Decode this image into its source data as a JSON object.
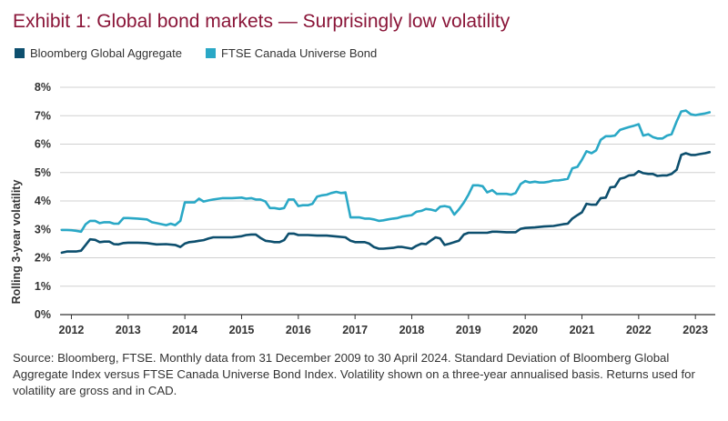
{
  "title": "Exhibit 1: Global bond markets — Surprisingly low volatility",
  "source": "Source: Bloomberg, FTSE. Monthly data from 31 December 2009 to 30 April 2024. Standard Deviation of Bloomberg Global Aggregate Index versus FTSE Canada Universe Bond Index. Volatility shown on a three-year annualised basis. Returns used for volatility are gross and in CAD.",
  "chart_data": {
    "type": "line",
    "title": "",
    "xlabel": "",
    "ylabel": "Rolling 3-year volatility",
    "x_ticks": [
      "2012",
      "2013",
      "2014",
      "2015",
      "2016",
      "2017",
      "2018",
      "2019",
      "2020",
      "2021",
      "2022",
      "2023"
    ],
    "y_ticks": [
      "0%",
      "1%",
      "2%",
      "3%",
      "4%",
      "5%",
      "6%",
      "7%",
      "8%"
    ],
    "xlim": [
      2011.8,
      2023.35
    ],
    "ylim": [
      0,
      8
    ],
    "grid": "horizontal",
    "legend_position": "top-left",
    "series": [
      {
        "name": "Bloomberg Global Aggregate",
        "color": "#0d4f6e",
        "points": [
          [
            2011.83,
            2.18
          ],
          [
            2011.92,
            2.22
          ],
          [
            2012.0,
            2.22
          ],
          [
            2012.08,
            2.22
          ],
          [
            2012.17,
            2.25
          ],
          [
            2012.25,
            2.45
          ],
          [
            2012.33,
            2.65
          ],
          [
            2012.42,
            2.63
          ],
          [
            2012.5,
            2.55
          ],
          [
            2012.58,
            2.57
          ],
          [
            2012.67,
            2.57
          ],
          [
            2012.75,
            2.48
          ],
          [
            2012.83,
            2.47
          ],
          [
            2012.92,
            2.52
          ],
          [
            2013.0,
            2.53
          ],
          [
            2013.17,
            2.53
          ],
          [
            2013.33,
            2.52
          ],
          [
            2013.5,
            2.47
          ],
          [
            2013.67,
            2.48
          ],
          [
            2013.83,
            2.45
          ],
          [
            2013.92,
            2.38
          ],
          [
            2014.0,
            2.5
          ],
          [
            2014.08,
            2.55
          ],
          [
            2014.17,
            2.57
          ],
          [
            2014.25,
            2.6
          ],
          [
            2014.33,
            2.62
          ],
          [
            2014.42,
            2.68
          ],
          [
            2014.5,
            2.72
          ],
          [
            2014.67,
            2.72
          ],
          [
            2014.83,
            2.72
          ],
          [
            2015.0,
            2.76
          ],
          [
            2015.08,
            2.8
          ],
          [
            2015.17,
            2.82
          ],
          [
            2015.25,
            2.82
          ],
          [
            2015.33,
            2.7
          ],
          [
            2015.42,
            2.6
          ],
          [
            2015.5,
            2.58
          ],
          [
            2015.58,
            2.55
          ],
          [
            2015.67,
            2.55
          ],
          [
            2015.75,
            2.62
          ],
          [
            2015.83,
            2.85
          ],
          [
            2015.92,
            2.85
          ],
          [
            2016.0,
            2.8
          ],
          [
            2016.17,
            2.8
          ],
          [
            2016.33,
            2.78
          ],
          [
            2016.5,
            2.78
          ],
          [
            2016.67,
            2.75
          ],
          [
            2016.83,
            2.72
          ],
          [
            2016.92,
            2.6
          ],
          [
            2017.0,
            2.55
          ],
          [
            2017.17,
            2.55
          ],
          [
            2017.25,
            2.5
          ],
          [
            2017.33,
            2.38
          ],
          [
            2017.42,
            2.32
          ],
          [
            2017.5,
            2.32
          ],
          [
            2017.67,
            2.35
          ],
          [
            2017.75,
            2.38
          ],
          [
            2017.83,
            2.38
          ],
          [
            2018.0,
            2.32
          ],
          [
            2018.08,
            2.42
          ],
          [
            2018.17,
            2.5
          ],
          [
            2018.25,
            2.48
          ],
          [
            2018.33,
            2.6
          ],
          [
            2018.42,
            2.72
          ],
          [
            2018.5,
            2.68
          ],
          [
            2018.58,
            2.45
          ],
          [
            2018.67,
            2.5
          ],
          [
            2018.75,
            2.55
          ],
          [
            2018.83,
            2.6
          ],
          [
            2018.92,
            2.82
          ],
          [
            2019.0,
            2.88
          ],
          [
            2019.17,
            2.88
          ],
          [
            2019.33,
            2.88
          ],
          [
            2019.42,
            2.92
          ],
          [
            2019.5,
            2.92
          ],
          [
            2019.67,
            2.9
          ],
          [
            2019.83,
            2.9
          ],
          [
            2019.92,
            3.02
          ],
          [
            2020.0,
            3.05
          ],
          [
            2020.17,
            3.07
          ],
          [
            2020.33,
            3.1
          ],
          [
            2020.5,
            3.12
          ],
          [
            2020.67,
            3.18
          ],
          [
            2020.75,
            3.2
          ],
          [
            2020.83,
            3.38
          ],
          [
            2020.92,
            3.5
          ],
          [
            2021.0,
            3.6
          ],
          [
            2021.08,
            3.9
          ],
          [
            2021.17,
            3.87
          ],
          [
            2021.25,
            3.87
          ],
          [
            2021.33,
            4.1
          ],
          [
            2021.42,
            4.12
          ],
          [
            2021.5,
            4.48
          ],
          [
            2021.58,
            4.5
          ],
          [
            2021.67,
            4.78
          ],
          [
            2021.75,
            4.82
          ],
          [
            2021.83,
            4.9
          ],
          [
            2021.92,
            4.92
          ],
          [
            2022.0,
            5.05
          ],
          [
            2022.08,
            4.98
          ],
          [
            2022.17,
            4.95
          ],
          [
            2022.25,
            4.95
          ],
          [
            2022.33,
            4.88
          ],
          [
            2022.42,
            4.9
          ],
          [
            2022.5,
            4.9
          ],
          [
            2022.58,
            4.95
          ],
          [
            2022.67,
            5.1
          ],
          [
            2022.75,
            5.62
          ],
          [
            2022.83,
            5.68
          ],
          [
            2022.92,
            5.62
          ],
          [
            2023.0,
            5.62
          ],
          [
            2023.08,
            5.65
          ],
          [
            2023.17,
            5.68
          ],
          [
            2023.25,
            5.72
          ]
        ]
      },
      {
        "name": "FTSE Canada Universe Bond",
        "color": "#2aa8c6",
        "points": [
          [
            2011.83,
            2.98
          ],
          [
            2011.92,
            2.98
          ],
          [
            2012.0,
            2.97
          ],
          [
            2012.08,
            2.95
          ],
          [
            2012.17,
            2.92
          ],
          [
            2012.25,
            3.18
          ],
          [
            2012.33,
            3.3
          ],
          [
            2012.42,
            3.3
          ],
          [
            2012.5,
            3.22
          ],
          [
            2012.58,
            3.25
          ],
          [
            2012.67,
            3.25
          ],
          [
            2012.75,
            3.2
          ],
          [
            2012.83,
            3.2
          ],
          [
            2012.92,
            3.4
          ],
          [
            2013.0,
            3.4
          ],
          [
            2013.17,
            3.38
          ],
          [
            2013.33,
            3.35
          ],
          [
            2013.42,
            3.25
          ],
          [
            2013.5,
            3.22
          ],
          [
            2013.67,
            3.15
          ],
          [
            2013.75,
            3.2
          ],
          [
            2013.83,
            3.15
          ],
          [
            2013.92,
            3.3
          ],
          [
            2014.0,
            3.95
          ],
          [
            2014.08,
            3.95
          ],
          [
            2014.17,
            3.95
          ],
          [
            2014.25,
            4.08
          ],
          [
            2014.33,
            3.98
          ],
          [
            2014.42,
            4.02
          ],
          [
            2014.5,
            4.05
          ],
          [
            2014.67,
            4.1
          ],
          [
            2014.83,
            4.1
          ],
          [
            2015.0,
            4.12
          ],
          [
            2015.08,
            4.08
          ],
          [
            2015.17,
            4.1
          ],
          [
            2015.25,
            4.05
          ],
          [
            2015.33,
            4.05
          ],
          [
            2015.42,
            3.98
          ],
          [
            2015.5,
            3.75
          ],
          [
            2015.58,
            3.75
          ],
          [
            2015.67,
            3.72
          ],
          [
            2015.75,
            3.75
          ],
          [
            2015.83,
            4.05
          ],
          [
            2015.92,
            4.05
          ],
          [
            2016.0,
            3.82
          ],
          [
            2016.08,
            3.85
          ],
          [
            2016.17,
            3.85
          ],
          [
            2016.25,
            3.9
          ],
          [
            2016.33,
            4.15
          ],
          [
            2016.42,
            4.2
          ],
          [
            2016.5,
            4.22
          ],
          [
            2016.58,
            4.28
          ],
          [
            2016.67,
            4.32
          ],
          [
            2016.75,
            4.28
          ],
          [
            2016.83,
            4.3
          ],
          [
            2016.92,
            3.42
          ],
          [
            2017.0,
            3.42
          ],
          [
            2017.08,
            3.42
          ],
          [
            2017.17,
            3.38
          ],
          [
            2017.25,
            3.38
          ],
          [
            2017.33,
            3.35
          ],
          [
            2017.42,
            3.3
          ],
          [
            2017.5,
            3.32
          ],
          [
            2017.58,
            3.35
          ],
          [
            2017.67,
            3.38
          ],
          [
            2017.75,
            3.4
          ],
          [
            2017.83,
            3.45
          ],
          [
            2017.92,
            3.48
          ],
          [
            2018.0,
            3.5
          ],
          [
            2018.08,
            3.62
          ],
          [
            2018.17,
            3.65
          ],
          [
            2018.25,
            3.72
          ],
          [
            2018.33,
            3.7
          ],
          [
            2018.42,
            3.65
          ],
          [
            2018.5,
            3.8
          ],
          [
            2018.58,
            3.82
          ],
          [
            2018.67,
            3.78
          ],
          [
            2018.75,
            3.52
          ],
          [
            2018.83,
            3.7
          ],
          [
            2018.92,
            3.95
          ],
          [
            2019.0,
            4.22
          ],
          [
            2019.08,
            4.55
          ],
          [
            2019.17,
            4.55
          ],
          [
            2019.25,
            4.52
          ],
          [
            2019.33,
            4.3
          ],
          [
            2019.42,
            4.38
          ],
          [
            2019.5,
            4.25
          ],
          [
            2019.58,
            4.25
          ],
          [
            2019.67,
            4.25
          ],
          [
            2019.75,
            4.22
          ],
          [
            2019.83,
            4.28
          ],
          [
            2019.92,
            4.6
          ],
          [
            2020.0,
            4.7
          ],
          [
            2020.08,
            4.65
          ],
          [
            2020.17,
            4.68
          ],
          [
            2020.25,
            4.65
          ],
          [
            2020.33,
            4.65
          ],
          [
            2020.42,
            4.68
          ],
          [
            2020.5,
            4.72
          ],
          [
            2020.58,
            4.72
          ],
          [
            2020.67,
            4.75
          ],
          [
            2020.75,
            4.78
          ],
          [
            2020.83,
            5.15
          ],
          [
            2020.92,
            5.2
          ],
          [
            2021.0,
            5.45
          ],
          [
            2021.08,
            5.75
          ],
          [
            2021.17,
            5.68
          ],
          [
            2021.25,
            5.78
          ],
          [
            2021.33,
            6.15
          ],
          [
            2021.42,
            6.28
          ],
          [
            2021.5,
            6.28
          ],
          [
            2021.58,
            6.3
          ],
          [
            2021.67,
            6.5
          ],
          [
            2021.75,
            6.55
          ],
          [
            2021.83,
            6.6
          ],
          [
            2021.92,
            6.65
          ],
          [
            2022.0,
            6.7
          ],
          [
            2022.08,
            6.3
          ],
          [
            2022.17,
            6.35
          ],
          [
            2022.25,
            6.25
          ],
          [
            2022.33,
            6.2
          ],
          [
            2022.42,
            6.2
          ],
          [
            2022.5,
            6.3
          ],
          [
            2022.58,
            6.35
          ],
          [
            2022.67,
            6.8
          ],
          [
            2022.75,
            7.15
          ],
          [
            2022.83,
            7.18
          ],
          [
            2022.92,
            7.05
          ],
          [
            2023.0,
            7.02
          ],
          [
            2023.08,
            7.05
          ],
          [
            2023.17,
            7.08
          ],
          [
            2023.25,
            7.12
          ]
        ]
      }
    ]
  }
}
